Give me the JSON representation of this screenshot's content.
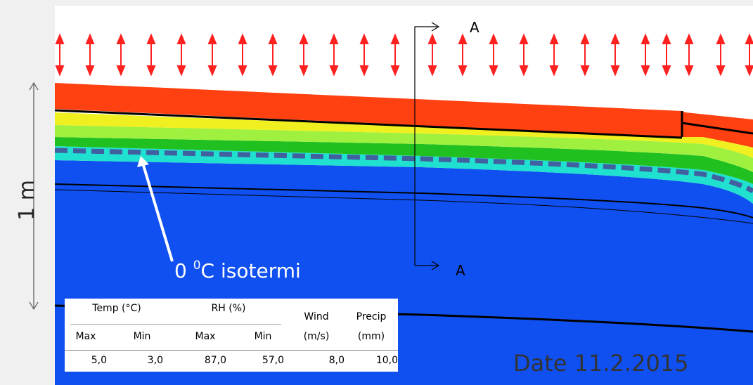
{
  "section_labels": {
    "top": "A",
    "bottom": "A"
  },
  "scale_label": "1 m",
  "isotherm_label": {
    "main": "0 ",
    "sup": "0",
    "rest": "C isotermi"
  },
  "date_label": "Date 11.2.2015",
  "table": {
    "groups": [
      "Temp (°C)",
      "RH (%)"
    ],
    "single": [
      {
        "top": "Wind",
        "bottom": "(m/s)"
      },
      {
        "top": "Precip",
        "bottom": "(mm)"
      }
    ],
    "subheaders": [
      "Max",
      "Min",
      "Max",
      "Min"
    ],
    "rows": [
      [
        "5,0",
        "3,0",
        "87,0",
        "57,0",
        "8,0",
        "10,0"
      ]
    ]
  }
}
